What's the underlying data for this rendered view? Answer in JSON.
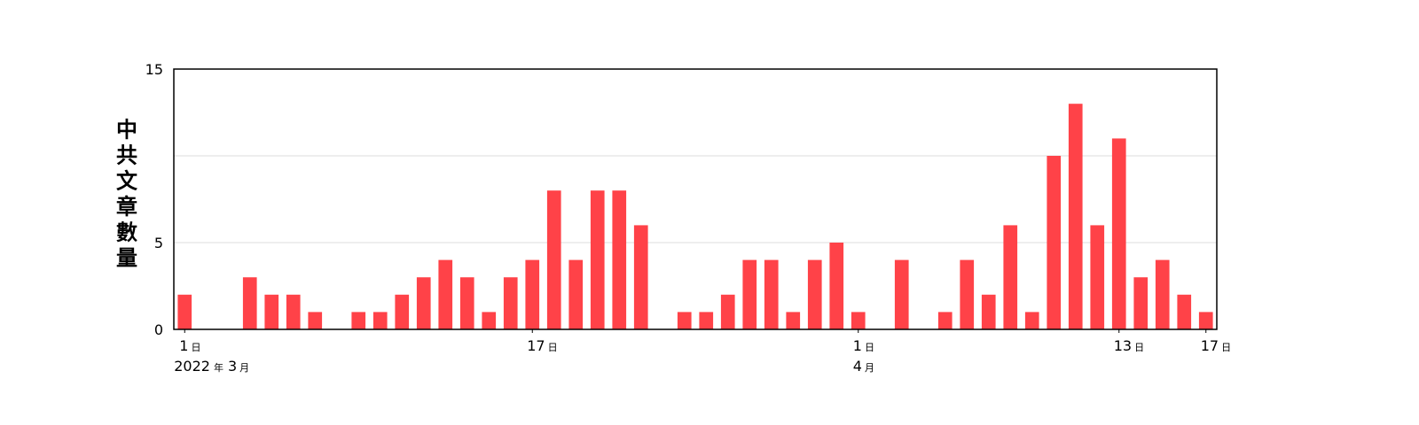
{
  "chart_data": {
    "type": "bar",
    "ylabel": "中共文章數量",
    "ylim": [
      0,
      15
    ],
    "y_ticks": [
      "0",
      "5",
      "15"
    ],
    "grid": true,
    "bar_color": "#ff4248",
    "x_start": "2022-03-01",
    "x_end": "2022-04-17",
    "x_ticks": [
      {
        "date": "2022-03-01",
        "day": "1",
        "day_unit": "日",
        "year": "2022",
        "year_unit": "年",
        "month": "3",
        "month_unit": "月"
      },
      {
        "date": "2022-03-17",
        "day": "17",
        "day_unit": "日"
      },
      {
        "date": "2022-04-01",
        "day": "1",
        "day_unit": "日",
        "month": "4",
        "month_unit": "月"
      },
      {
        "date": "2022-04-13",
        "day": "13",
        "day_unit": "日"
      },
      {
        "date": "2022-04-17",
        "day": "17",
        "day_unit": "日"
      }
    ],
    "x": [
      "2022-03-01",
      "2022-03-02",
      "2022-03-03",
      "2022-03-04",
      "2022-03-05",
      "2022-03-06",
      "2022-03-07",
      "2022-03-08",
      "2022-03-09",
      "2022-03-10",
      "2022-03-11",
      "2022-03-12",
      "2022-03-13",
      "2022-03-14",
      "2022-03-15",
      "2022-03-16",
      "2022-03-17",
      "2022-03-18",
      "2022-03-19",
      "2022-03-20",
      "2022-03-21",
      "2022-03-22",
      "2022-03-23",
      "2022-03-24",
      "2022-03-25",
      "2022-03-26",
      "2022-03-27",
      "2022-03-28",
      "2022-03-29",
      "2022-03-30",
      "2022-03-31",
      "2022-04-01",
      "2022-04-02",
      "2022-04-03",
      "2022-04-04",
      "2022-04-05",
      "2022-04-06",
      "2022-04-07",
      "2022-04-08",
      "2022-04-09",
      "2022-04-10",
      "2022-04-11",
      "2022-04-12",
      "2022-04-13",
      "2022-04-14",
      "2022-04-15",
      "2022-04-16",
      "2022-04-17"
    ],
    "values": [
      2,
      0,
      0,
      3,
      2,
      2,
      1,
      0,
      1,
      1,
      2,
      3,
      4,
      3,
      1,
      3,
      4,
      8,
      4,
      8,
      8,
      6,
      0,
      1,
      1,
      2,
      4,
      4,
      1,
      4,
      5,
      1,
      0,
      4,
      0,
      1,
      4,
      2,
      6,
      1,
      10,
      13,
      6,
      11,
      3,
      4,
      2,
      1
    ]
  }
}
